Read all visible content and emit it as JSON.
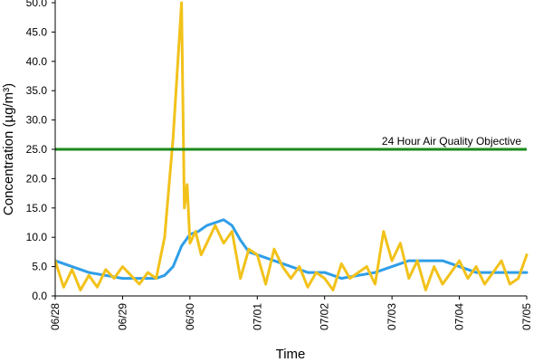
{
  "chart_data": {
    "type": "line",
    "xlabel": "Time",
    "ylabel": "Concentration (µg/m³)",
    "x_ticks": [
      "06/28",
      "06/29",
      "06/30",
      "07/01",
      "07/02",
      "07/03",
      "07/04",
      "07/05"
    ],
    "y_ticks": [
      "0.0",
      "5.0",
      "10.0",
      "15.0",
      "20.0",
      "25.0",
      "30.0",
      "35.0",
      "40.0",
      "45.0",
      "50.0"
    ],
    "ylim": [
      0,
      50
    ],
    "xlim": [
      "06/28 00:00",
      "07/05 00:00"
    ],
    "grid": false,
    "reference_line": {
      "value": 25.0,
      "label": "24 Hour Air Quality Objective",
      "color": "#1a8a1a"
    },
    "series": [
      {
        "color": "#f2c21b",
        "x": [
          "06/28 00:00",
          "06/28 03:00",
          "06/28 06:00",
          "06/28 09:00",
          "06/28 12:00",
          "06/28 15:00",
          "06/28 18:00",
          "06/28 21:00",
          "06/29 00:00",
          "06/29 03:00",
          "06/29 06:00",
          "06/29 09:00",
          "06/29 12:00",
          "06/29 15:00",
          "06/29 18:00",
          "06/29 21:00",
          "06/29 22:00",
          "06/29 23:00",
          "06/30 00:00",
          "06/30 02:00",
          "06/30 04:00",
          "06/30 06:00",
          "06/30 09:00",
          "06/30 12:00",
          "06/30 15:00",
          "06/30 18:00",
          "06/30 21:00",
          "07/01 00:00",
          "07/01 03:00",
          "07/01 06:00",
          "07/01 09:00",
          "07/01 12:00",
          "07/01 15:00",
          "07/01 18:00",
          "07/01 21:00",
          "07/02 00:00",
          "07/02 03:00",
          "07/02 06:00",
          "07/02 09:00",
          "07/02 12:00",
          "07/02 15:00",
          "07/02 18:00",
          "07/02 21:00",
          "07/03 00:00",
          "07/03 03:00",
          "07/03 06:00",
          "07/03 09:00",
          "07/03 12:00",
          "07/03 15:00",
          "07/03 18:00",
          "07/03 21:00",
          "07/04 00:00",
          "07/04 03:00",
          "07/04 06:00",
          "07/04 09:00",
          "07/04 12:00",
          "07/04 15:00",
          "07/04 18:00",
          "07/04 21:00",
          "07/05 00:00"
        ],
        "values": [
          6,
          1.5,
          4.5,
          1,
          3.5,
          1.5,
          4.5,
          3,
          5,
          3.5,
          2,
          4,
          3,
          10,
          27,
          52,
          15,
          19,
          9,
          11,
          7,
          9,
          12,
          9,
          11,
          3,
          8,
          7,
          2,
          8,
          5,
          3,
          5,
          1.5,
          4,
          3,
          1,
          5.5,
          3,
          4,
          5,
          2,
          11,
          6,
          9,
          3,
          6,
          1,
          5,
          2,
          4,
          6,
          3,
          5,
          2,
          4,
          6,
          2,
          3,
          7
        ]
      },
      {
        "color": "#2f9ee8",
        "x": [
          "06/28 00:00",
          "06/28 06:00",
          "06/28 12:00",
          "06/28 18:00",
          "06/29 00:00",
          "06/29 06:00",
          "06/29 12:00",
          "06/29 15:00",
          "06/29 18:00",
          "06/29 21:00",
          "06/30 00:00",
          "06/30 03:00",
          "06/30 06:00",
          "06/30 09:00",
          "06/30 12:00",
          "06/30 15:00",
          "06/30 18:00",
          "06/30 21:00",
          "07/01 00:00",
          "07/01 06:00",
          "07/01 12:00",
          "07/01 18:00",
          "07/02 00:00",
          "07/02 06:00",
          "07/02 12:00",
          "07/02 18:00",
          "07/03 00:00",
          "07/03 06:00",
          "07/03 12:00",
          "07/03 18:00",
          "07/04 00:00",
          "07/04 06:00",
          "07/04 12:00",
          "07/04 18:00",
          "07/05 00:00"
        ],
        "values": [
          6,
          5,
          4,
          3.5,
          3,
          3,
          3,
          3.5,
          5,
          8.5,
          10.5,
          11,
          12,
          12.5,
          13,
          12,
          9.5,
          7.5,
          7,
          6,
          5,
          4,
          4,
          3,
          3.5,
          4,
          5,
          6,
          6,
          6,
          5,
          4,
          4,
          4,
          4
        ]
      }
    ]
  }
}
